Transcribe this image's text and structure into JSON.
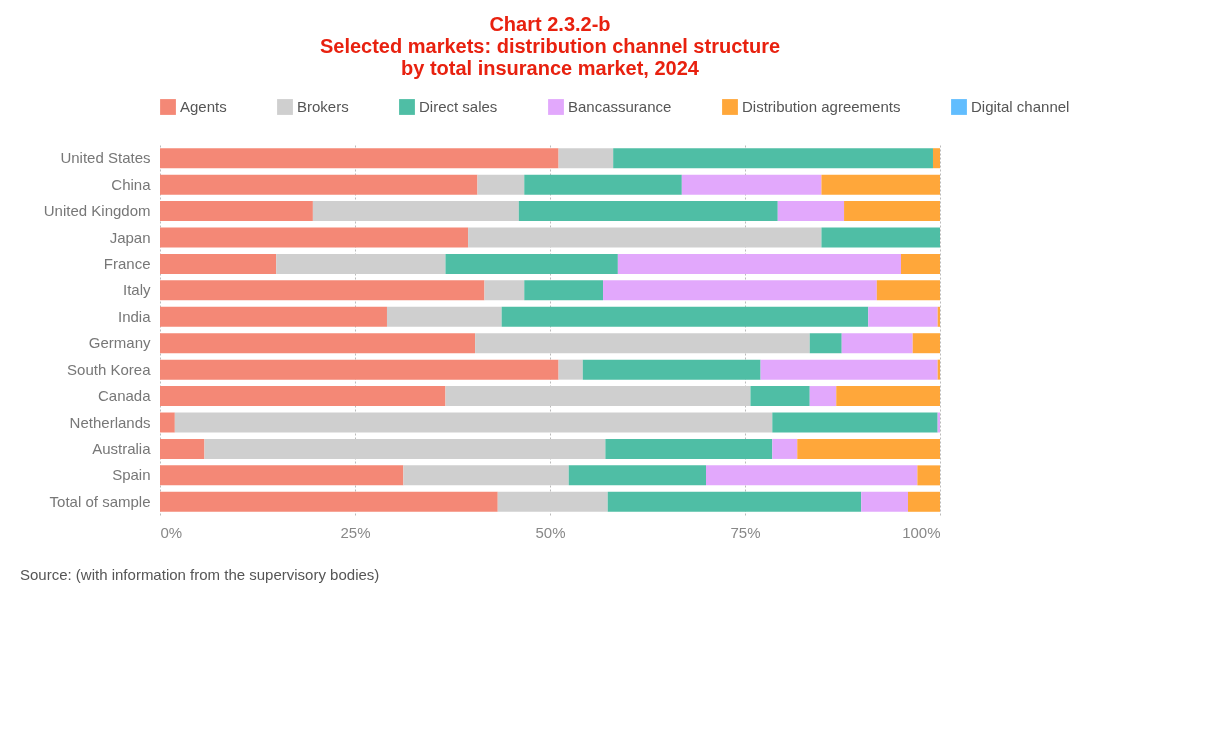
{
  "chart_data": {
    "type": "bar",
    "orientation": "horizontal",
    "stacked": true,
    "title": "Chart 2.3.2-b\nSelected markets: distribution channel structure\nby total insurance market, 2024",
    "categories": [
      "United States",
      "China",
      "United Kingdom",
      "Japan",
      "France",
      "Italy",
      "India",
      "Germany",
      "South Korea",
      "Canada",
      "Netherlands",
      "Australia",
      "Spain",
      "Total of sample"
    ],
    "series": [
      {
        "name": "Agents",
        "color": "#f48876",
        "values": [
          51.1,
          40.7,
          19.6,
          39.5,
          14.9,
          41.6,
          29.1,
          40.4,
          51.1,
          36.6,
          1.9,
          5.7,
          31.2,
          43.3
        ]
      },
      {
        "name": "Brokers",
        "color": "#cfcfcf",
        "values": [
          7.0,
          6.0,
          26.4,
          45.3,
          21.7,
          5.1,
          14.7,
          42.9,
          3.1,
          39.1,
          76.6,
          51.4,
          21.2,
          14.1
        ]
      },
      {
        "name": "Direct sales",
        "color": "#4fbea5",
        "values": [
          41.0,
          20.2,
          33.2,
          15.2,
          22.1,
          10.1,
          47.0,
          4.1,
          22.8,
          7.6,
          21.2,
          21.4,
          17.6,
          32.5
        ]
      },
      {
        "name": "Bancassurance",
        "color": "#e2a8fc",
        "values": [
          0,
          17.9,
          8.5,
          0,
          36.3,
          35.1,
          8.9,
          9.1,
          22.7,
          3.4,
          0.3,
          3.2,
          27.1,
          6.0
        ]
      },
      {
        "name": "Distribution agreements",
        "color": "#ffa73a",
        "values": [
          0.9,
          15.2,
          12.3,
          0,
          5.0,
          8.1,
          0.3,
          3.5,
          0.3,
          13.3,
          0,
          18.3,
          2.9,
          4.1
        ]
      },
      {
        "name": "Digital channel",
        "color": "#61bdfe",
        "values": [
          0,
          0,
          0,
          0,
          0,
          0,
          0,
          0,
          0,
          0,
          0,
          0,
          0,
          0
        ]
      }
    ],
    "xlim": [
      0,
      100
    ],
    "xticks": [
      {
        "value": 0,
        "label": "0%"
      },
      {
        "value": 25,
        "label": "25%"
      },
      {
        "value": 50,
        "label": "50%"
      },
      {
        "value": 75,
        "label": "75%"
      },
      {
        "value": 100,
        "label": "100%"
      }
    ],
    "grid": "x",
    "legend": "top",
    "annotations": [
      "Source: (with information from the supervisory bodies)"
    ]
  }
}
